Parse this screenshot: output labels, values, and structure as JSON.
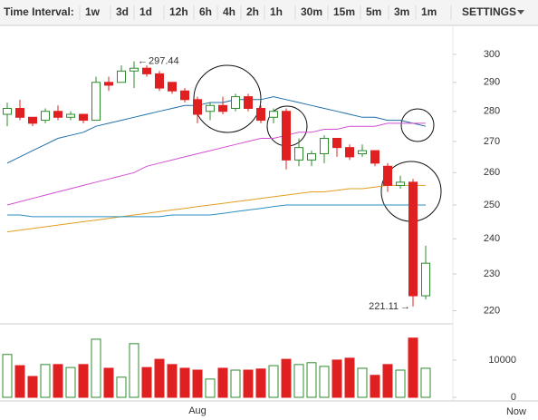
{
  "toolbar": {
    "label": "Time Interval:",
    "intervals": [
      "1w",
      "3d",
      "1d",
      "12h",
      "6h",
      "4h",
      "2h",
      "1h",
      "30m",
      "15m",
      "5m",
      "3m",
      "1m"
    ],
    "active": "1d",
    "settings": "SETTINGS"
  },
  "chart_data": {
    "type": "candlestick",
    "categories": [
      null,
      null,
      null,
      null,
      null,
      null,
      null,
      null,
      null,
      null,
      null,
      null,
      null,
      null,
      null,
      "Aug",
      null,
      null,
      null,
      null,
      null,
      null,
      null,
      null,
      null,
      null,
      null,
      null,
      null,
      null,
      null,
      null,
      null,
      null
    ],
    "end_label": "Now",
    "open": [
      279,
      281,
      278,
      277,
      280,
      278,
      279,
      277,
      290,
      290,
      294,
      295,
      293,
      290,
      287,
      284,
      280,
      282,
      281,
      285,
      281,
      278,
      280,
      264,
      264,
      266,
      271,
      268,
      266,
      267,
      262,
      256,
      257,
      224
    ],
    "high": [
      283,
      284,
      278,
      281,
      282,
      280,
      279,
      292,
      292,
      296,
      297.44,
      296,
      294,
      290,
      288,
      285,
      283,
      285,
      286,
      286,
      282,
      281,
      281,
      271,
      267,
      272,
      271,
      269,
      269,
      267,
      263,
      259,
      258,
      238
    ],
    "low": [
      275,
      277,
      275,
      276,
      277,
      277,
      276,
      277,
      287,
      290,
      288,
      292,
      287,
      286,
      283,
      276,
      277,
      279,
      280,
      280,
      276,
      276,
      261,
      262,
      262,
      263,
      265,
      264,
      265,
      262,
      254,
      255,
      221.11,
      223
    ],
    "close": [
      281,
      278,
      276,
      280,
      278,
      279,
      277,
      290,
      289,
      294,
      295,
      293,
      288,
      287,
      284,
      279,
      282,
      280,
      285,
      281,
      277,
      280,
      264,
      268,
      266,
      271,
      268,
      265,
      267,
      263,
      256,
      257,
      224,
      233
    ],
    "up_color": "#2e8b2e",
    "down_color": "#e02020",
    "series": [
      {
        "color": "#1f6fa8",
        "values": [
          263,
          265,
          267,
          269,
          271,
          272,
          273,
          275,
          276,
          277,
          278,
          279,
          280,
          281,
          282,
          282,
          283,
          283,
          284,
          284,
          284,
          285,
          284,
          283,
          282,
          281,
          280,
          279,
          278,
          278,
          277,
          277,
          276,
          275
        ]
      },
      {
        "color": "#d24fd2",
        "values": [
          250,
          251,
          252,
          253,
          254,
          255,
          256,
          257,
          258,
          259,
          260,
          262,
          263,
          264,
          265,
          266,
          267,
          268,
          269,
          270,
          271,
          271,
          272,
          273,
          273,
          274,
          274,
          275,
          275,
          275,
          276,
          276,
          276,
          276
        ]
      },
      {
        "color": "#e0a020",
        "values": [
          242,
          242.5,
          243,
          243.5,
          244,
          244.5,
          245,
          245.5,
          246,
          246.5,
          247,
          247.5,
          248,
          248.5,
          249,
          249.5,
          250,
          250.5,
          251,
          251.5,
          252,
          252.5,
          253,
          253.5,
          254,
          254,
          254.5,
          255,
          255,
          255.5,
          256,
          256,
          256,
          256
        ]
      },
      {
        "color": "#2a8fbf",
        "values": [
          247,
          247,
          246.5,
          246.5,
          246.5,
          246.5,
          246.5,
          246.5,
          246.5,
          246.5,
          246.5,
          246.5,
          246.5,
          247,
          247,
          247,
          247,
          247.5,
          248,
          248.5,
          249,
          249.5,
          250,
          250,
          250,
          250,
          250,
          250,
          250,
          250,
          250,
          250,
          250,
          250
        ]
      }
    ],
    "log_scale": true,
    "ylim": [
      217,
      310
    ],
    "yticks": [
      220,
      230,
      240,
      250,
      260,
      270,
      280,
      290,
      300
    ],
    "volume": {
      "values": [
        11500,
        8500,
        5600,
        8800,
        8800,
        8000,
        8800,
        15600,
        7800,
        5400,
        14400,
        8000,
        10200,
        8800,
        7800,
        7300,
        4900,
        7800,
        7300,
        7300,
        7600,
        8500,
        10200,
        8800,
        9300,
        8300,
        10000,
        10500,
        7800,
        5900,
        8800,
        7300,
        15900,
        7800
      ],
      "ylim": [
        0,
        18500
      ],
      "yticks": [
        0,
        10000
      ]
    }
  }
}
